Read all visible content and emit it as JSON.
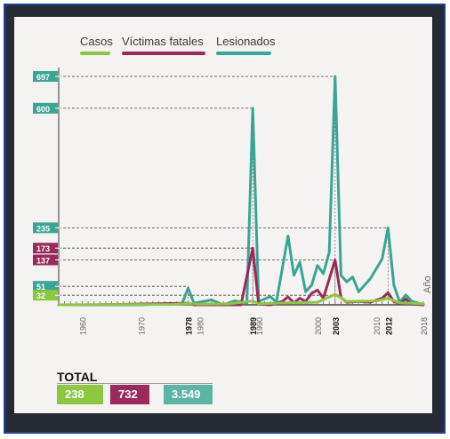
{
  "chart_data": {
    "type": "line",
    "legend": [
      "Casos",
      "Víctimas fatales",
      "Lesionados"
    ],
    "colors": {
      "casos": "#8dc63f",
      "fatales": "#9a2a5c",
      "lesionados": "#3aa495",
      "total_lesionados": "#5bb5a5"
    },
    "y_callouts": [
      {
        "label": "697",
        "series": "lesionados"
      },
      {
        "label": "600",
        "series": "lesionados"
      },
      {
        "label": "235",
        "series": "lesionados"
      },
      {
        "label": "173",
        "series": "fatales"
      },
      {
        "label": "137",
        "series": "fatales"
      },
      {
        "label": "51",
        "series": "lesionados"
      },
      {
        "label": "32",
        "series": "casos"
      }
    ],
    "x_ticks": [
      "1960",
      "1970",
      "1978",
      "1980",
      "1989",
      "1990",
      "2000",
      "2003",
      "2010",
      "2012",
      "2018"
    ],
    "x_ticks_bold": [
      "1978",
      "1989",
      "2003",
      "2012"
    ],
    "x_axis_label": "Año",
    "xlim": [
      1956,
      2018
    ],
    "ylim": [
      0,
      697
    ],
    "series": [
      {
        "name": "Casos",
        "key": "casos",
        "points": [
          [
            1956,
            0
          ],
          [
            1965,
            1
          ],
          [
            1975,
            1
          ],
          [
            1978,
            4
          ],
          [
            1980,
            2
          ],
          [
            1985,
            3
          ],
          [
            1989,
            12
          ],
          [
            1990,
            3
          ],
          [
            1995,
            6
          ],
          [
            2000,
            8
          ],
          [
            2003,
            32
          ],
          [
            2005,
            10
          ],
          [
            2010,
            12
          ],
          [
            2012,
            20
          ],
          [
            2014,
            6
          ],
          [
            2016,
            5
          ],
          [
            2018,
            3
          ]
        ]
      },
      {
        "name": "Víctimas fatales",
        "key": "fatales",
        "points": [
          [
            1956,
            0
          ],
          [
            1962,
            0
          ],
          [
            1978,
            5
          ],
          [
            1979,
            0
          ],
          [
            1987,
            0
          ],
          [
            1989,
            173
          ],
          [
            1990,
            2
          ],
          [
            1992,
            0
          ],
          [
            1994,
            10
          ],
          [
            1995,
            24
          ],
          [
            1996,
            6
          ],
          [
            1997,
            20
          ],
          [
            1998,
            10
          ],
          [
            1999,
            35
          ],
          [
            2000,
            45
          ],
          [
            2001,
            20
          ],
          [
            2003,
            137
          ],
          [
            2004,
            22
          ],
          [
            2005,
            8
          ],
          [
            2007,
            10
          ],
          [
            2009,
            8
          ],
          [
            2011,
            20
          ],
          [
            2012,
            37
          ],
          [
            2013,
            10
          ],
          [
            2014,
            4
          ],
          [
            2015,
            18
          ],
          [
            2016,
            2
          ],
          [
            2018,
            0
          ]
        ]
      },
      {
        "name": "Lesionados",
        "key": "lesionados",
        "points": [
          [
            1956,
            0
          ],
          [
            1970,
            0
          ],
          [
            1977,
            5
          ],
          [
            1978,
            51
          ],
          [
            1979,
            5
          ],
          [
            1982,
            15
          ],
          [
            1984,
            0
          ],
          [
            1986,
            12
          ],
          [
            1988,
            5
          ],
          [
            1989,
            600
          ],
          [
            1990,
            10
          ],
          [
            1992,
            25
          ],
          [
            1993,
            8
          ],
          [
            1995,
            210
          ],
          [
            1996,
            90
          ],
          [
            1997,
            130
          ],
          [
            1998,
            40
          ],
          [
            1999,
            60
          ],
          [
            2000,
            120
          ],
          [
            2001,
            95
          ],
          [
            2002,
            160
          ],
          [
            2003,
            697
          ],
          [
            2004,
            90
          ],
          [
            2005,
            70
          ],
          [
            2006,
            85
          ],
          [
            2007,
            40
          ],
          [
            2008,
            60
          ],
          [
            2009,
            80
          ],
          [
            2011,
            140
          ],
          [
            2012,
            235
          ],
          [
            2013,
            60
          ],
          [
            2014,
            8
          ],
          [
            2015,
            30
          ],
          [
            2016,
            12
          ],
          [
            2017,
            5
          ],
          [
            2018,
            0
          ]
        ]
      }
    ]
  },
  "totals": {
    "heading": "TOTAL",
    "casos": "238",
    "fatales": "732",
    "lesionados": "3.549"
  }
}
